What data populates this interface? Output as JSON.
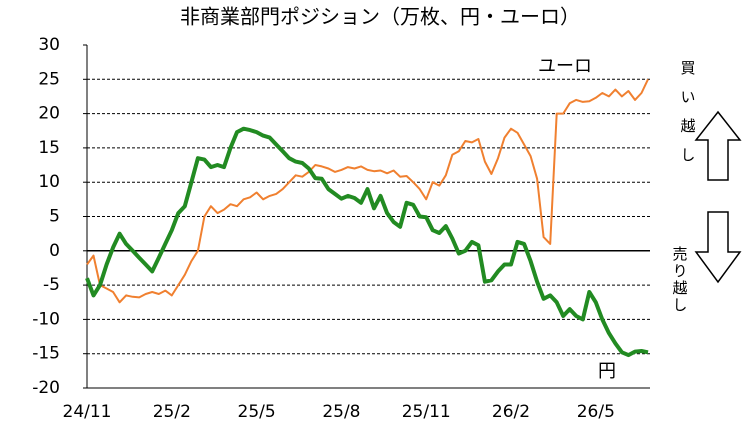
{
  "chart_data": {
    "type": "line",
    "title": "非商業部門ポジション（万枚、円・ユーロ）",
    "categories": [
      "24/11",
      null,
      null,
      null,
      null,
      null,
      null,
      null,
      null,
      null,
      null,
      null,
      null,
      "25/2",
      null,
      null,
      null,
      null,
      null,
      null,
      null,
      null,
      null,
      null,
      null,
      null,
      "25/5",
      null,
      null,
      null,
      null,
      null,
      null,
      null,
      null,
      null,
      null,
      null,
      null,
      "25/8",
      null,
      null,
      null,
      null,
      null,
      null,
      null,
      null,
      null,
      null,
      null,
      null,
      "25/11",
      null,
      null,
      null,
      null,
      null,
      null,
      null,
      null,
      null,
      null,
      null,
      null,
      "26/2",
      null,
      null,
      null,
      null,
      null,
      null,
      null,
      null,
      null,
      null,
      null,
      null,
      "26/5",
      null,
      null,
      null,
      null,
      null,
      null,
      null,
      null
    ],
    "series": [
      {
        "name": "円",
        "color": "#228b22",
        "values": [
          -4,
          -6.5,
          -5,
          -2,
          0.5,
          2.5,
          1,
          0,
          -1,
          -2,
          -3,
          -1,
          1,
          3,
          5.5,
          6.5,
          10,
          13.5,
          13.3,
          12.2,
          12.5,
          12.2,
          15,
          17.3,
          17.8,
          17.6,
          17.3,
          16.8,
          16.5,
          15.5,
          14.5,
          13.5,
          13,
          12.8,
          12,
          10.6,
          10.5,
          9,
          8.3,
          7.6,
          8,
          7.7,
          7,
          9,
          6.2,
          8,
          5.5,
          4.2,
          3.5,
          7,
          6.7,
          5,
          4.9,
          3,
          2.6,
          3.6,
          1.8,
          -0.4,
          0,
          1.3,
          0.8,
          -4.5,
          -4.3,
          -3,
          -2,
          -2,
          1.3,
          1,
          -1.5,
          -4.5,
          -7,
          -6.5,
          -7.5,
          -9.5,
          -8.5,
          -9.5,
          -10,
          -6,
          -7.5,
          -10,
          -12,
          -13.5,
          -14.8,
          -15.2,
          -14.7,
          -14.6,
          -14.8
        ]
      },
      {
        "name": "ユーロ",
        "color": "#f08030",
        "values": [
          -2,
          -0.7,
          -5,
          -5.5,
          -6,
          -7.5,
          -6.5,
          -6.7,
          -6.8,
          -6.3,
          -6,
          -6.3,
          -5.8,
          -6.5,
          -5,
          -3.5,
          -1.5,
          0,
          5,
          6.5,
          5.5,
          6,
          6.8,
          6.5,
          7.5,
          7.8,
          8.5,
          7.5,
          8,
          8.3,
          9,
          10,
          11,
          10.8,
          11.5,
          12.5,
          12.3,
          12,
          11.5,
          11.8,
          12.2,
          12,
          12.3,
          11.8,
          11.6,
          11.7,
          11.3,
          11.7,
          10.8,
          10.9,
          10,
          9,
          7.5,
          10,
          9.5,
          11,
          14,
          14.5,
          16,
          15.8,
          16.3,
          13,
          11.2,
          13.5,
          16.5,
          17.8,
          17.2,
          15.5,
          13.8,
          10.5,
          2,
          1,
          20,
          20,
          21.5,
          22,
          21.7,
          21.8,
          22.3,
          23,
          22.5,
          23.5,
          22.5,
          23.3,
          22,
          23,
          25
        ]
      }
    ],
    "ylim": [
      -20,
      30
    ],
    "yticks": [
      -20,
      -15,
      -10,
      -5,
      0,
      5,
      10,
      15,
      20,
      25,
      30
    ],
    "grid": true,
    "annotations": {
      "long": "買い越し",
      "short": "売り越し"
    }
  }
}
